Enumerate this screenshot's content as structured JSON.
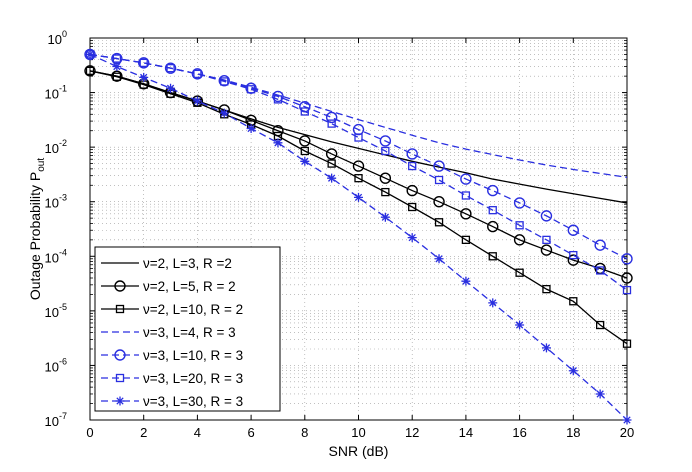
{
  "chart_data": {
    "type": "line",
    "title": "",
    "xlabel": "SNR (dB)",
    "ylabel": "Outage Probability P",
    "ylabel_subscript": "out",
    "xlim": [
      0,
      20
    ],
    "ylim": [
      1e-07,
      1
    ],
    "yscale": "log",
    "grid": true,
    "legend_position": "bottom-left",
    "x_ticks": [
      "0",
      "2",
      "4",
      "6",
      "8",
      "10",
      "12",
      "14",
      "16",
      "18",
      "20"
    ],
    "y_tick_exponents": [
      "0",
      "-1",
      "-2",
      "-3",
      "-4",
      "-5",
      "-6",
      "-7"
    ],
    "y_tick_base": "10",
    "series": [
      {
        "name": "ν=2, L=3,   R =2",
        "color": "#000000",
        "dash": "solid",
        "marker": "none",
        "x": [
          0,
          1,
          2,
          3,
          4,
          5,
          6,
          7,
          8,
          9,
          10,
          11,
          12,
          13,
          14,
          15,
          16,
          17,
          18,
          19,
          20
        ],
        "values": [
          0.25,
          0.2,
          0.145,
          0.1,
          0.07,
          0.048,
          0.033,
          0.023,
          0.017,
          0.0125,
          0.0095,
          0.0072,
          0.0055,
          0.0043,
          0.0034,
          0.0026,
          0.0021,
          0.0017,
          0.0014,
          0.00115,
          0.00095
        ]
      },
      {
        "name": "ν=2, L=5,   R = 2",
        "color": "#000000",
        "dash": "solid",
        "marker": "circle",
        "x": [
          0,
          1,
          2,
          3,
          4,
          5,
          6,
          7,
          8,
          9,
          10,
          11,
          12,
          13,
          14,
          15,
          16,
          17,
          18,
          19,
          20
        ],
        "values": [
          0.25,
          0.2,
          0.145,
          0.1,
          0.07,
          0.048,
          0.031,
          0.02,
          0.013,
          0.0075,
          0.0045,
          0.0027,
          0.0016,
          0.001,
          0.0006,
          0.00035,
          0.0002,
          0.00013,
          8.5e-05,
          6e-05,
          4e-05
        ]
      },
      {
        "name": "ν=2, L=10, R = 2",
        "color": "#000000",
        "dash": "solid",
        "marker": "square",
        "x": [
          0,
          1,
          2,
          3,
          4,
          5,
          6,
          7,
          8,
          9,
          10,
          11,
          12,
          13,
          14,
          15,
          16,
          17,
          18,
          19,
          20
        ],
        "values": [
          0.25,
          0.195,
          0.14,
          0.095,
          0.065,
          0.04,
          0.026,
          0.016,
          0.0085,
          0.005,
          0.0027,
          0.0015,
          0.0008,
          0.00042,
          0.0002,
          0.0001,
          5e-05,
          2.5e-05,
          1.5e-05,
          5.5e-06,
          2.5e-06
        ]
      },
      {
        "name": "ν=3, L=4,    R = 3",
        "color": "#2a2fe0",
        "dash": "dashed",
        "marker": "none",
        "x": [
          0,
          1,
          2,
          3,
          4,
          5,
          6,
          7,
          8,
          9,
          10,
          11,
          12,
          13,
          14,
          15,
          16,
          17,
          18,
          19,
          20
        ],
        "values": [
          0.5,
          0.42,
          0.35,
          0.28,
          0.22,
          0.17,
          0.125,
          0.09,
          0.064,
          0.045,
          0.032,
          0.023,
          0.0165,
          0.012,
          0.0092,
          0.0073,
          0.0058,
          0.0047,
          0.0039,
          0.0033,
          0.0028
        ]
      },
      {
        "name": "ν=3, L=10, R = 3",
        "color": "#2a2fe0",
        "dash": "dashed",
        "marker": "circle",
        "x": [
          0,
          1,
          2,
          3,
          4,
          5,
          6,
          7,
          8,
          9,
          10,
          11,
          12,
          13,
          14,
          15,
          16,
          17,
          18,
          19,
          20
        ],
        "values": [
          0.5,
          0.42,
          0.35,
          0.28,
          0.22,
          0.165,
          0.12,
          0.085,
          0.055,
          0.035,
          0.021,
          0.013,
          0.0075,
          0.0045,
          0.0026,
          0.0016,
          0.00095,
          0.00055,
          0.0003,
          0.00016,
          9e-05
        ]
      },
      {
        "name": "ν=3, L=20, R = 3",
        "color": "#2a2fe0",
        "dash": "dashed",
        "marker": "square",
        "x": [
          0,
          1,
          2,
          3,
          4,
          5,
          6,
          7,
          8,
          9,
          10,
          11,
          12,
          13,
          14,
          15,
          16,
          17,
          18,
          19,
          20
        ],
        "values": [
          0.5,
          0.42,
          0.35,
          0.28,
          0.22,
          0.16,
          0.115,
          0.075,
          0.045,
          0.027,
          0.015,
          0.0085,
          0.0045,
          0.0025,
          0.0013,
          0.0007,
          0.00037,
          0.0002,
          0.000105,
          5.5e-05,
          2.4e-05
        ]
      },
      {
        "name": "ν=3, L=30, R = 3",
        "color": "#2a2fe0",
        "dash": "dashed",
        "marker": "star",
        "x": [
          0,
          1,
          2,
          3,
          4,
          5,
          6,
          7,
          8,
          9,
          10,
          11,
          12,
          13,
          14,
          15,
          16,
          17,
          18,
          19,
          20
        ],
        "values": [
          0.5,
          0.3,
          0.19,
          0.12,
          0.07,
          0.042,
          0.022,
          0.012,
          0.0055,
          0.0027,
          0.0012,
          0.00052,
          0.00022,
          9e-05,
          3.5e-05,
          1.4e-05,
          5.5e-06,
          2.1e-06,
          8e-07,
          3e-07,
          1e-07
        ]
      }
    ]
  }
}
